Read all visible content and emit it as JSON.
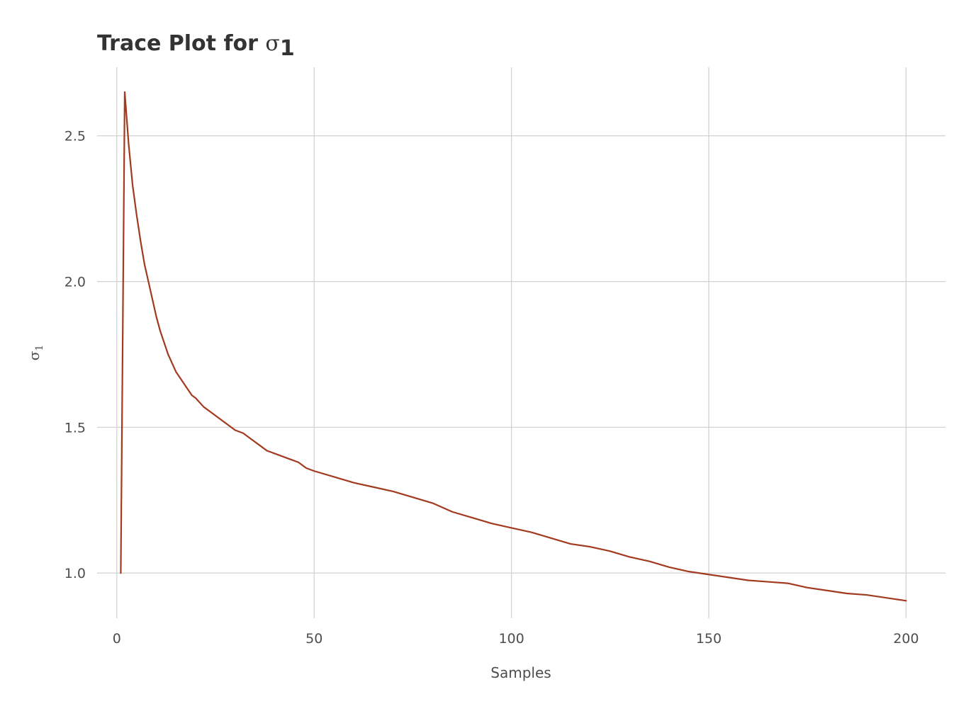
{
  "chart_data": {
    "type": "line",
    "title": "Trace Plot for σ₁",
    "title_main": "Trace Plot for ",
    "title_symbol": "σ",
    "title_subscript": "1",
    "xlabel": "Samples",
    "ylabel_symbol": "σ",
    "ylabel_subscript": "1",
    "xlim": [
      -5,
      210
    ],
    "ylim": [
      0.845,
      2.735
    ],
    "x_ticks": [
      0,
      50,
      100,
      150,
      200
    ],
    "x_tick_labels": [
      "0",
      "50",
      "100",
      "150",
      "200"
    ],
    "y_ticks": [
      1.0,
      1.5,
      2.0,
      2.5
    ],
    "y_tick_labels": [
      "1.0",
      "1.5",
      "2.0",
      "2.5"
    ],
    "grid": true,
    "legend": "none",
    "line_color": "#a23a1f",
    "grid_color": "#d3d3d3",
    "series": [
      {
        "x": [
          1,
          2,
          3,
          4,
          5,
          6,
          7,
          8,
          9,
          10,
          11,
          12,
          13,
          14,
          15,
          16,
          17,
          18,
          19,
          20,
          22,
          24,
          26,
          28,
          30,
          32,
          34,
          36,
          38,
          40,
          42,
          44,
          46,
          48,
          50,
          55,
          60,
          65,
          70,
          75,
          80,
          85,
          90,
          95,
          100,
          105,
          110,
          115,
          120,
          125,
          130,
          135,
          140,
          145,
          150,
          155,
          160,
          165,
          170,
          175,
          180,
          185,
          190,
          195,
          200
        ],
        "values": [
          1.0,
          2.65,
          2.47,
          2.33,
          2.23,
          2.14,
          2.06,
          2.0,
          1.94,
          1.88,
          1.83,
          1.79,
          1.75,
          1.72,
          1.69,
          1.67,
          1.65,
          1.63,
          1.61,
          1.6,
          1.57,
          1.55,
          1.53,
          1.51,
          1.49,
          1.48,
          1.46,
          1.44,
          1.42,
          1.41,
          1.4,
          1.39,
          1.38,
          1.36,
          1.35,
          1.33,
          1.31,
          1.295,
          1.28,
          1.26,
          1.24,
          1.21,
          1.19,
          1.17,
          1.155,
          1.14,
          1.12,
          1.1,
          1.09,
          1.075,
          1.055,
          1.04,
          1.02,
          1.005,
          0.995,
          0.985,
          0.975,
          0.97,
          0.965,
          0.95,
          0.94,
          0.93,
          0.925,
          0.915,
          0.905
        ]
      }
    ]
  }
}
